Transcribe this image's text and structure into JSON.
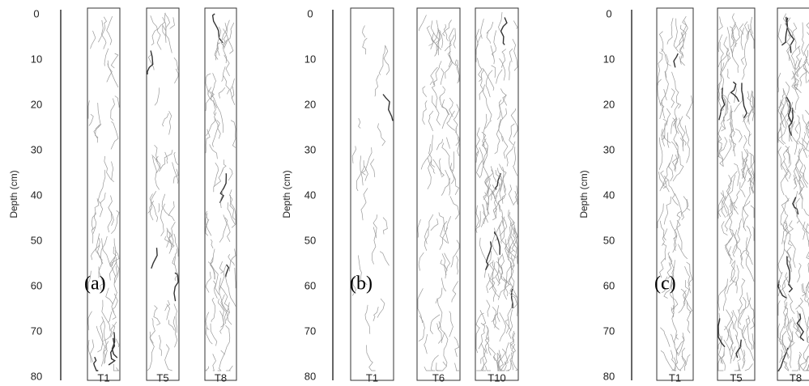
{
  "panels": [
    {
      "label": "(a)",
      "axis_label": "Depth (cm)",
      "ticks": [
        0,
        10,
        20,
        30,
        40,
        50,
        60,
        70,
        80
      ],
      "tubes": [
        "T1",
        "T5",
        "T8"
      ]
    },
    {
      "label": "(b)",
      "axis_label": "Depth (cm)",
      "ticks": [
        0,
        10,
        20,
        30,
        40,
        50,
        60,
        70,
        80
      ],
      "tubes": [
        "T1",
        "T6",
        "T10"
      ]
    },
    {
      "label": "(c)",
      "axis_label": "Depth (cm)",
      "ticks": [
        0,
        10,
        20,
        30,
        40,
        50,
        60,
        70,
        80
      ],
      "tubes": [
        "T1",
        "T5",
        "T8"
      ]
    }
  ]
}
